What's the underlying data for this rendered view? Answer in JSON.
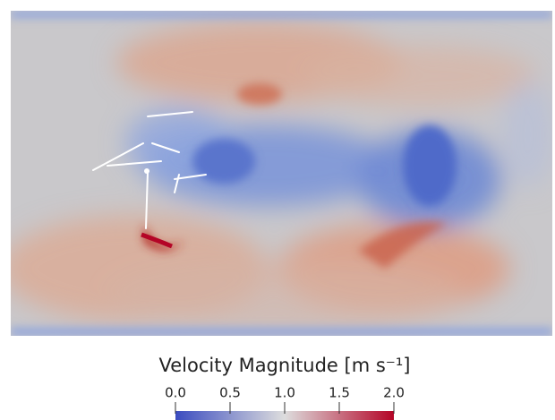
{
  "chart_data": {
    "type": "field",
    "colorbar": {
      "title": "Velocity Magnitude [m s⁻¹]",
      "clim": [
        0,
        2
      ],
      "ticks": [
        {
          "value": 0,
          "label": "0.0"
        },
        {
          "value": 0.5,
          "label": "0.5"
        },
        {
          "value": 1,
          "label": "1.0"
        },
        {
          "value": 1.5,
          "label": "1.5"
        },
        {
          "value": 2,
          "label": "2.0"
        }
      ],
      "colormap": [
        "#3b4cc0",
        "#dddddd",
        "#b40426"
      ]
    }
  }
}
